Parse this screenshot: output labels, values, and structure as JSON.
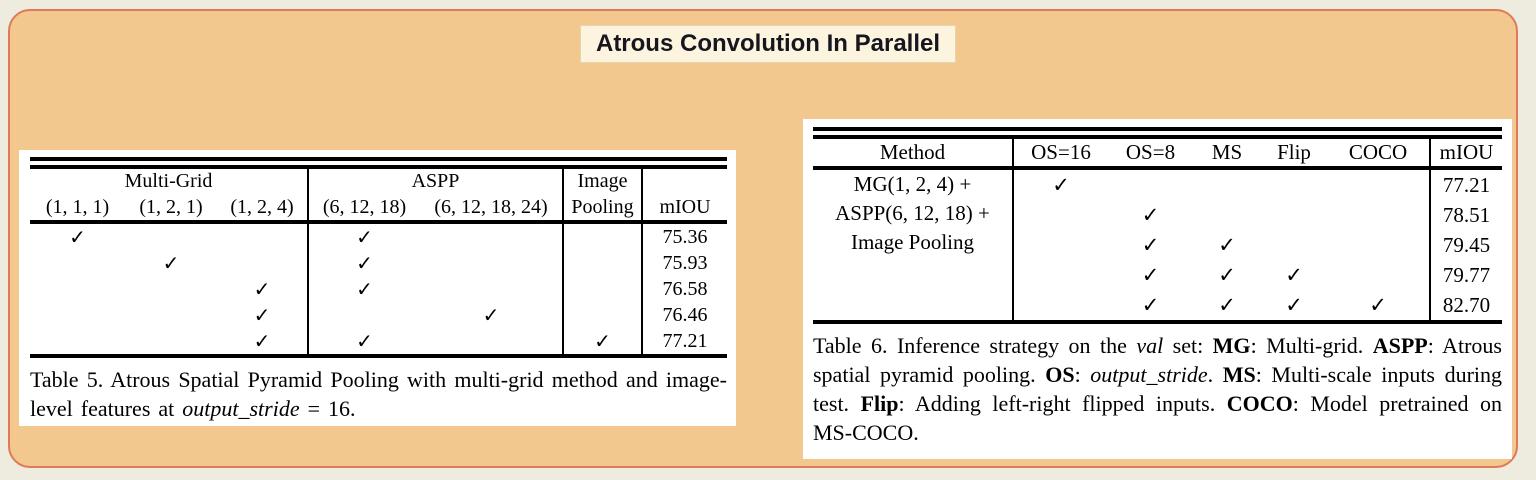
{
  "colors": {
    "page_bg": "#edecdf",
    "card_bg": "#f2c88e",
    "card_border": "#e0795a",
    "title_bg": "#fdf4df",
    "title_border": "#e7d4ab",
    "title_text": "#16161f"
  },
  "title": "Atrous Convolution In Parallel",
  "table5": {
    "groups": {
      "multigrid": "Multi-Grid",
      "aspp": "ASPP",
      "image": "Image"
    },
    "col_headers": [
      "(1, 1, 1)",
      "(1, 2, 1)",
      "(1, 2, 4)",
      "(6, 12, 18)",
      "(6, 12, 18, 24)",
      "Pooling",
      "mIOU"
    ],
    "rows": [
      {
        "cells": [
          "✓",
          "",
          "",
          "✓",
          "",
          "",
          "75.36"
        ]
      },
      {
        "cells": [
          "",
          "✓",
          "",
          "✓",
          "",
          "",
          "75.93"
        ]
      },
      {
        "cells": [
          "",
          "",
          "✓",
          "✓",
          "",
          "",
          "76.58"
        ]
      },
      {
        "cells": [
          "",
          "",
          "✓",
          "",
          "✓",
          "",
          "76.46"
        ]
      },
      {
        "cells": [
          "",
          "",
          "✓",
          "✓",
          "",
          "✓",
          "77.21"
        ]
      }
    ],
    "caption_runs": [
      {
        "t": "Table 5. Atrous Spatial Pyramid Pooling with multi-grid method and image-level features at ",
        "s": "n"
      },
      {
        "t": "output_stride",
        "s": "i"
      },
      {
        "t": " = 16.",
        "s": "n"
      }
    ]
  },
  "table6": {
    "col_headers": [
      "Method",
      "OS=16",
      "OS=8",
      "MS",
      "Flip",
      "COCO",
      "mIOU"
    ],
    "method_lines": [
      "MG(1, 2, 4) +",
      "ASPP(6, 12, 18) +",
      "Image Pooling"
    ],
    "rows": [
      {
        "cells": [
          "✓",
          "",
          "",
          "",
          "",
          "77.21"
        ]
      },
      {
        "cells": [
          "",
          "✓",
          "",
          "",
          "",
          "78.51"
        ]
      },
      {
        "cells": [
          "",
          "✓",
          "✓",
          "",
          "",
          "79.45"
        ]
      },
      {
        "cells": [
          "",
          "✓",
          "✓",
          "✓",
          "",
          "79.77"
        ]
      },
      {
        "cells": [
          "",
          "✓",
          "✓",
          "✓",
          "✓",
          "82.70"
        ]
      }
    ],
    "caption_runs": [
      {
        "t": "Table 6. Inference strategy on the ",
        "s": "n"
      },
      {
        "t": "val",
        "s": "i"
      },
      {
        "t": " set: ",
        "s": "n"
      },
      {
        "t": "MG",
        "s": "b"
      },
      {
        "t": ": Multi-grid. ",
        "s": "n"
      },
      {
        "t": "ASPP",
        "s": "b"
      },
      {
        "t": ": Atrous spatial pyramid pooling. ",
        "s": "n"
      },
      {
        "t": "OS",
        "s": "b"
      },
      {
        "t": ": ",
        "s": "n"
      },
      {
        "t": "output_stride",
        "s": "i"
      },
      {
        "t": ". ",
        "s": "n"
      },
      {
        "t": "MS",
        "s": "b"
      },
      {
        "t": ": Multi-scale inputs during test. ",
        "s": "n"
      },
      {
        "t": "Flip",
        "s": "b"
      },
      {
        "t": ": Adding left-right flipped inputs. ",
        "s": "n"
      },
      {
        "t": "COCO",
        "s": "b"
      },
      {
        "t": ": Model pretrained on MS-COCO.",
        "s": "n"
      }
    ]
  }
}
